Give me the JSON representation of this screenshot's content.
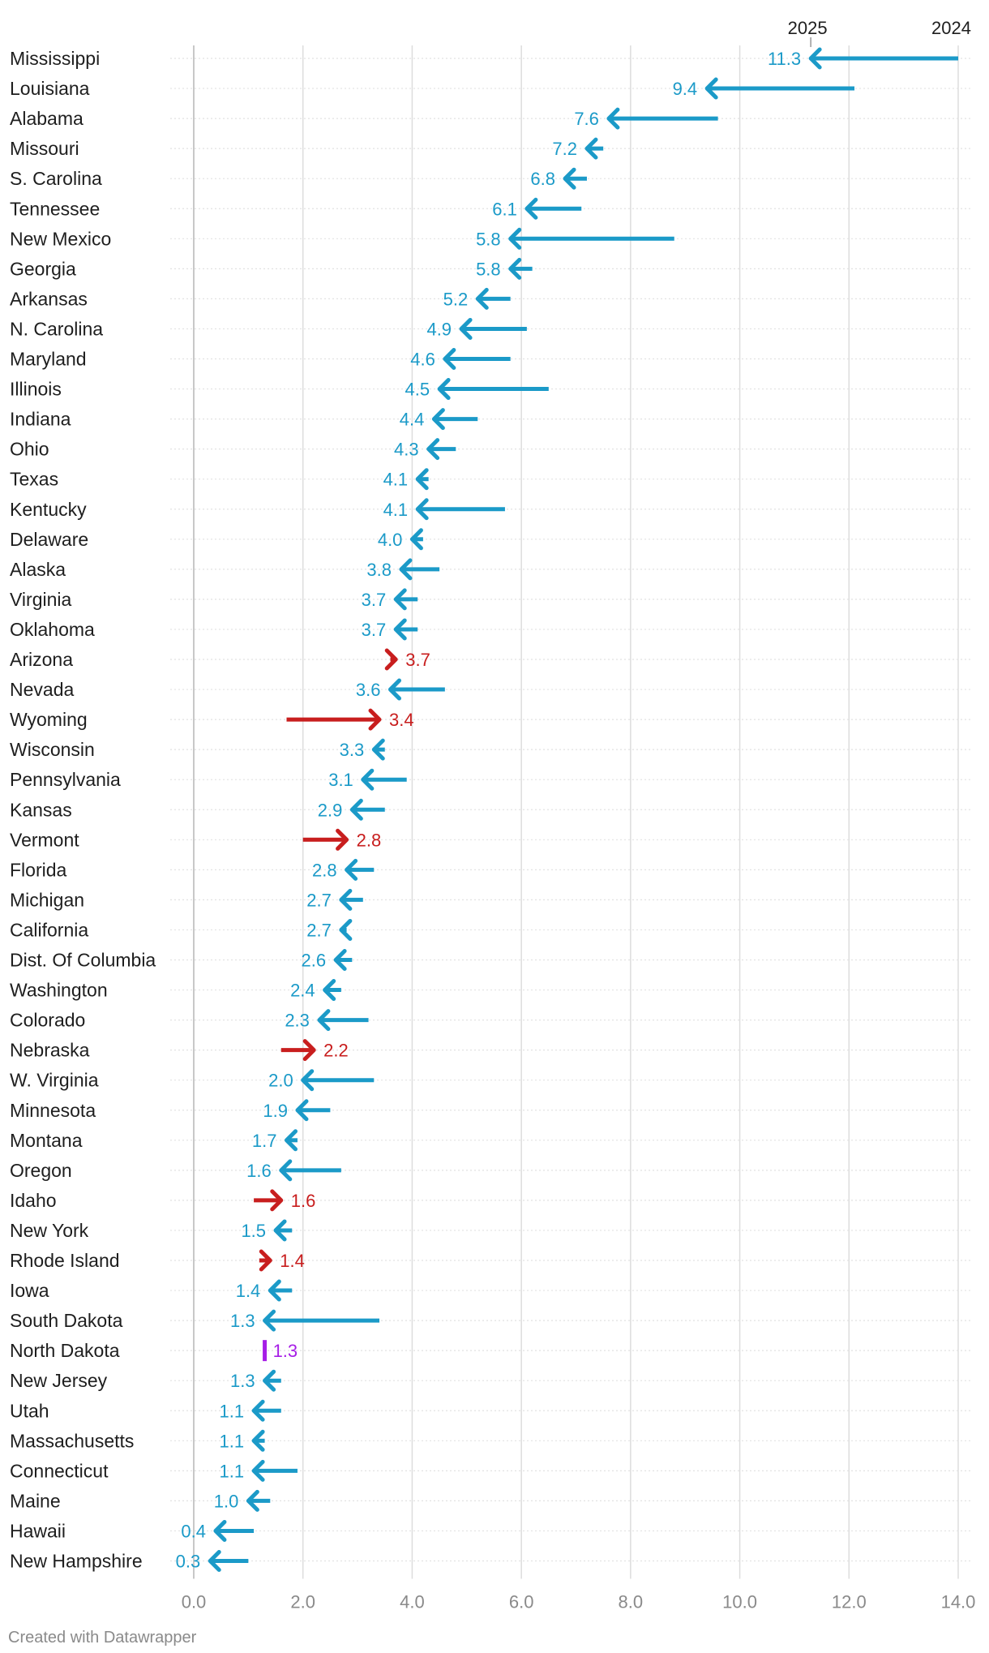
{
  "chart_data": {
    "type": "arrow",
    "title": "",
    "xlabel": "",
    "ylabel": "",
    "xlim": [
      0,
      14
    ],
    "xticks": [
      "0.0",
      "2.0",
      "4.0",
      "6.0",
      "8.0",
      "10.0",
      "12.0",
      "14.0"
    ],
    "legend": {
      "start_label": "2024",
      "end_label": "2025"
    },
    "colors": {
      "decrease": "#1b9ac8",
      "increase": "#c81e1e",
      "nochange": "#a61ee6",
      "grid": "#dddddd",
      "axis": "#c8c8c8",
      "tick": "#8a8a8a",
      "label": "#1e1e1e"
    },
    "series": [
      {
        "state": "Mississippi",
        "v2024": 14.0,
        "v2025": 11.3,
        "label": "11.3"
      },
      {
        "state": "Louisiana",
        "v2024": 12.1,
        "v2025": 9.4,
        "label": "9.4"
      },
      {
        "state": "Alabama",
        "v2024": 9.6,
        "v2025": 7.6,
        "label": "7.6"
      },
      {
        "state": "Missouri",
        "v2024": 7.5,
        "v2025": 7.2,
        "label": "7.2"
      },
      {
        "state": "S. Carolina",
        "v2024": 7.2,
        "v2025": 6.8,
        "label": "6.8"
      },
      {
        "state": "Tennessee",
        "v2024": 7.1,
        "v2025": 6.1,
        "label": "6.1"
      },
      {
        "state": "New Mexico",
        "v2024": 8.8,
        "v2025": 5.8,
        "label": "5.8"
      },
      {
        "state": "Georgia",
        "v2024": 6.2,
        "v2025": 5.8,
        "label": "5.8"
      },
      {
        "state": "Arkansas",
        "v2024": 5.8,
        "v2025": 5.2,
        "label": "5.2"
      },
      {
        "state": "N. Carolina",
        "v2024": 6.1,
        "v2025": 4.9,
        "label": "4.9"
      },
      {
        "state": "Maryland",
        "v2024": 5.8,
        "v2025": 4.6,
        "label": "4.6"
      },
      {
        "state": "Illinois",
        "v2024": 6.5,
        "v2025": 4.5,
        "label": "4.5"
      },
      {
        "state": "Indiana",
        "v2024": 5.2,
        "v2025": 4.4,
        "label": "4.4"
      },
      {
        "state": "Ohio",
        "v2024": 4.8,
        "v2025": 4.3,
        "label": "4.3"
      },
      {
        "state": "Texas",
        "v2024": 4.3,
        "v2025": 4.1,
        "label": "4.1"
      },
      {
        "state": "Kentucky",
        "v2024": 5.7,
        "v2025": 4.1,
        "label": "4.1"
      },
      {
        "state": "Delaware",
        "v2024": 4.2,
        "v2025": 4.0,
        "label": "4.0"
      },
      {
        "state": "Alaska",
        "v2024": 4.5,
        "v2025": 3.8,
        "label": "3.8"
      },
      {
        "state": "Virginia",
        "v2024": 4.1,
        "v2025": 3.7,
        "label": "3.7"
      },
      {
        "state": "Oklahoma",
        "v2024": 4.1,
        "v2025": 3.7,
        "label": "3.7"
      },
      {
        "state": "Arizona",
        "v2024": 3.6,
        "v2025": 3.7,
        "label": "3.7"
      },
      {
        "state": "Nevada",
        "v2024": 4.6,
        "v2025": 3.6,
        "label": "3.6"
      },
      {
        "state": "Wyoming",
        "v2024": 1.7,
        "v2025": 3.4,
        "label": "3.4"
      },
      {
        "state": "Wisconsin",
        "v2024": 3.5,
        "v2025": 3.3,
        "label": "3.3"
      },
      {
        "state": "Pennsylvania",
        "v2024": 3.9,
        "v2025": 3.1,
        "label": "3.1"
      },
      {
        "state": "Kansas",
        "v2024": 3.5,
        "v2025": 2.9,
        "label": "2.9"
      },
      {
        "state": "Vermont",
        "v2024": 2.0,
        "v2025": 2.8,
        "label": "2.8"
      },
      {
        "state": "Florida",
        "v2024": 3.3,
        "v2025": 2.8,
        "label": "2.8"
      },
      {
        "state": "Michigan",
        "v2024": 3.1,
        "v2025": 2.7,
        "label": "2.7"
      },
      {
        "state": "California",
        "v2024": 2.8,
        "v2025": 2.7,
        "label": "2.7"
      },
      {
        "state": "Dist. Of Columbia",
        "v2024": 2.9,
        "v2025": 2.6,
        "label": "2.6"
      },
      {
        "state": "Washington",
        "v2024": 2.7,
        "v2025": 2.4,
        "label": "2.4"
      },
      {
        "state": "Colorado",
        "v2024": 3.2,
        "v2025": 2.3,
        "label": "2.3"
      },
      {
        "state": "Nebraska",
        "v2024": 1.6,
        "v2025": 2.2,
        "label": "2.2"
      },
      {
        "state": "W. Virginia",
        "v2024": 3.3,
        "v2025": 2.0,
        "label": "2.0"
      },
      {
        "state": "Minnesota",
        "v2024": 2.5,
        "v2025": 1.9,
        "label": "1.9"
      },
      {
        "state": "Montana",
        "v2024": 1.9,
        "v2025": 1.7,
        "label": "1.7"
      },
      {
        "state": "Oregon",
        "v2024": 2.7,
        "v2025": 1.6,
        "label": "1.6"
      },
      {
        "state": "Idaho",
        "v2024": 1.1,
        "v2025": 1.6,
        "label": "1.6"
      },
      {
        "state": "New York",
        "v2024": 1.8,
        "v2025": 1.5,
        "label": "1.5"
      },
      {
        "state": "Rhode Island",
        "v2024": 1.2,
        "v2025": 1.4,
        "label": "1.4"
      },
      {
        "state": "Iowa",
        "v2024": 1.8,
        "v2025": 1.4,
        "label": "1.4"
      },
      {
        "state": "South Dakota",
        "v2024": 3.4,
        "v2025": 1.3,
        "label": "1.3"
      },
      {
        "state": "North Dakota",
        "v2024": 1.3,
        "v2025": 1.3,
        "label": "1.3"
      },
      {
        "state": "New Jersey",
        "v2024": 1.6,
        "v2025": 1.3,
        "label": "1.3"
      },
      {
        "state": "Utah",
        "v2024": 1.6,
        "v2025": 1.1,
        "label": "1.1"
      },
      {
        "state": "Massachusetts",
        "v2024": 1.3,
        "v2025": 1.1,
        "label": "1.1"
      },
      {
        "state": "Connecticut",
        "v2024": 1.9,
        "v2025": 1.1,
        "label": "1.1"
      },
      {
        "state": "Maine",
        "v2024": 1.4,
        "v2025": 1.0,
        "label": "1.0"
      },
      {
        "state": "Hawaii",
        "v2024": 1.1,
        "v2025": 0.4,
        "label": "0.4"
      },
      {
        "state": "New Hampshire",
        "v2024": 1.0,
        "v2025": 0.3,
        "label": "0.3"
      }
    ]
  },
  "footer": {
    "credit": "Created with Datawrapper"
  }
}
